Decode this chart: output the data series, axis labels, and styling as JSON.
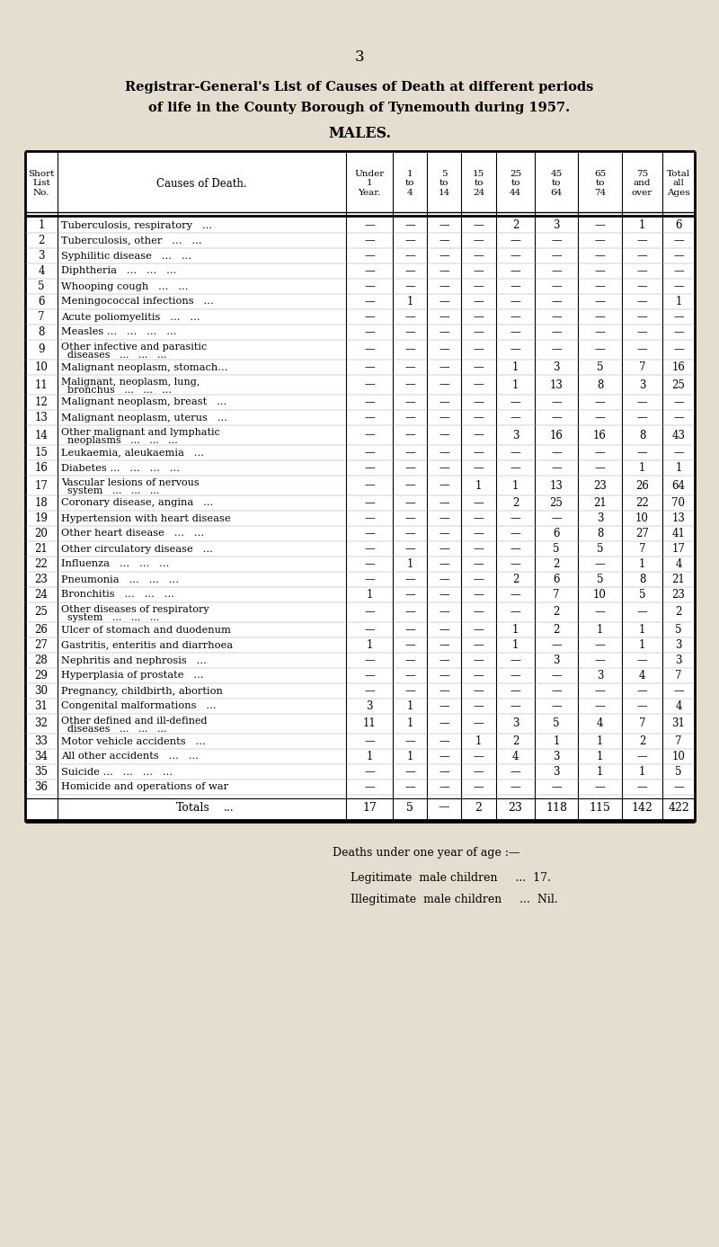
{
  "page_number": "3",
  "title_line1": "Registrar-General's List of Causes of Death at different periods",
  "title_line2": "of life in the County Borough of Tynemouth during 1957.",
  "subtitle": "MALES.",
  "bg_color": "#e5ddd0",
  "rows": [
    {
      "no": "1",
      "cause": "Tuberculosis, respiratory   ...",
      "wrap": false,
      "u1": "—",
      "1to4": "—",
      "5to14": "—",
      "15to24": "—",
      "25to44": "2",
      "45to64": "3",
      "65to74": "—",
      "75over": "1",
      "total": "6"
    },
    {
      "no": "2",
      "cause": "Tuberculosis, other   ...   ...",
      "wrap": false,
      "u1": "—",
      "1to4": "—",
      "5to14": "—",
      "15to24": "—",
      "25to44": "—",
      "45to64": "—",
      "65to74": "—",
      "75over": "—",
      "total": "—"
    },
    {
      "no": "3",
      "cause": "Syphilitic disease   ...   ...",
      "wrap": false,
      "u1": "—",
      "1to4": "—",
      "5to14": "—",
      "15to24": "—",
      "25to44": "—",
      "45to64": "—",
      "65to74": "—",
      "75over": "—",
      "total": "—"
    },
    {
      "no": "4",
      "cause": "Diphtheria   ...   ...   ...",
      "wrap": false,
      "u1": "—",
      "1to4": "—",
      "5to14": "—",
      "15to24": "—",
      "25to44": "—",
      "45to64": "—",
      "65to74": "—",
      "75over": "—",
      "total": "—"
    },
    {
      "no": "5",
      "cause": "Whooping cough   ...   ...",
      "wrap": false,
      "u1": "—",
      "1to4": "—",
      "5to14": "—",
      "15to24": "—",
      "25to44": "—",
      "45to64": "—",
      "65to74": "—",
      "75over": "—",
      "total": "—"
    },
    {
      "no": "6",
      "cause": "Meningococcal infections   ...",
      "wrap": false,
      "u1": "—",
      "1to4": "1",
      "5to14": "—",
      "15to24": "—",
      "25to44": "—",
      "45to64": "—",
      "65to74": "—",
      "75over": "—",
      "total": "1"
    },
    {
      "no": "7",
      "cause": "Acute poliomyelitis   ...   ...",
      "wrap": false,
      "u1": "—",
      "1to4": "—",
      "5to14": "—",
      "15to24": "—",
      "25to44": "—",
      "45to64": "—",
      "65to74": "—",
      "75over": "—",
      "total": "—"
    },
    {
      "no": "8",
      "cause": "Measles ...   ...   ...   ...",
      "wrap": false,
      "u1": "—",
      "1to4": "—",
      "5to14": "—",
      "15to24": "—",
      "25to44": "—",
      "45to64": "—",
      "65to74": "—",
      "75over": "—",
      "total": "—"
    },
    {
      "no": "9",
      "cause": "Other infective and parasitic",
      "wrap": true,
      "cause2": "  diseases   ...   ...   ...",
      "u1": "—",
      "1to4": "—",
      "5to14": "—",
      "15to24": "—",
      "25to44": "—",
      "45to64": "—",
      "65to74": "—",
      "75over": "—",
      "total": "—"
    },
    {
      "no": "10",
      "cause": "Malignant neoplasm, stomach...",
      "wrap": false,
      "u1": "—",
      "1to4": "—",
      "5to14": "—",
      "15to24": "—",
      "25to44": "1",
      "45to64": "3",
      "65to74": "5",
      "75over": "7",
      "total": "16"
    },
    {
      "no": "11",
      "cause": "Malignant, neoplasm, lung,",
      "wrap": true,
      "cause2": "  bronchus   ...   ...   ...",
      "u1": "—",
      "1to4": "—",
      "5to14": "—",
      "15to24": "—",
      "25to44": "1",
      "45to64": "13",
      "65to74": "8",
      "75over": "3",
      "total": "25"
    },
    {
      "no": "12",
      "cause": "Malignant neoplasm, breast   ...",
      "wrap": false,
      "u1": "—",
      "1to4": "—",
      "5to14": "—",
      "15to24": "—",
      "25to44": "—",
      "45to64": "—",
      "65to74": "—",
      "75over": "—",
      "total": "—"
    },
    {
      "no": "13",
      "cause": "Malignant neoplasm, uterus   ...",
      "wrap": false,
      "u1": "—",
      "1to4": "—",
      "5to14": "—",
      "15to24": "—",
      "25to44": "—",
      "45to64": "—",
      "65to74": "—",
      "75over": "—",
      "total": "—"
    },
    {
      "no": "14",
      "cause": "Other malignant and lymphatic",
      "wrap": true,
      "cause2": "  neoplasms   ...   ...   ...",
      "u1": "—",
      "1to4": "—",
      "5to14": "—",
      "15to24": "—",
      "25to44": "3",
      "45to64": "16",
      "65to74": "16",
      "75over": "8",
      "total": "43"
    },
    {
      "no": "15",
      "cause": "Leukaemia, aleukaemia   ...",
      "wrap": false,
      "u1": "—",
      "1to4": "—",
      "5to14": "—",
      "15to24": "—",
      "25to44": "—",
      "45to64": "—",
      "65to74": "—",
      "75over": "—",
      "total": "—"
    },
    {
      "no": "16",
      "cause": "Diabetes ...   ...   ...   ...",
      "wrap": false,
      "u1": "—",
      "1to4": "—",
      "5to14": "—",
      "15to24": "—",
      "25to44": "—",
      "45to64": "—",
      "65to74": "—",
      "75over": "1",
      "total": "1"
    },
    {
      "no": "17",
      "cause": "Vascular lesions of nervous",
      "wrap": true,
      "cause2": "  system   ...   ...   ...",
      "u1": "—",
      "1to4": "—",
      "5to14": "—",
      "15to24": "1",
      "25to44": "1",
      "45to64": "13",
      "65to74": "23",
      "75over": "26",
      "total": "64"
    },
    {
      "no": "18",
      "cause": "Coronary disease, angina   ...",
      "wrap": false,
      "u1": "—",
      "1to4": "—",
      "5to14": "—",
      "15to24": "—",
      "25to44": "2",
      "45to64": "25",
      "65to74": "21",
      "75over": "22",
      "total": "70"
    },
    {
      "no": "19",
      "cause": "Hypertension with heart disease",
      "wrap": false,
      "u1": "—",
      "1to4": "—",
      "5to14": "—",
      "15to24": "—",
      "25to44": "—",
      "45to64": "—",
      "65to74": "3",
      "75over": "10",
      "total": "13"
    },
    {
      "no": "20",
      "cause": "Other heart disease   ...   ...",
      "wrap": false,
      "u1": "—",
      "1to4": "—",
      "5to14": "—",
      "15to24": "—",
      "25to44": "—",
      "45to64": "6",
      "65to74": "8",
      "75over": "27",
      "total": "41"
    },
    {
      "no": "21",
      "cause": "Other circulatory disease   ...",
      "wrap": false,
      "u1": "—",
      "1to4": "—",
      "5to14": "—",
      "15to24": "—",
      "25to44": "—",
      "45to64": "5",
      "65to74": "5",
      "75over": "7",
      "total": "17"
    },
    {
      "no": "22",
      "cause": "Influenza   ...   ...   ...",
      "wrap": false,
      "u1": "—",
      "1to4": "1",
      "5to14": "—",
      "15to24": "—",
      "25to44": "—",
      "45to64": "2",
      "65to74": "—",
      "75over": "1",
      "total": "4"
    },
    {
      "no": "23",
      "cause": "Pneumonia   ...   ...   ...",
      "wrap": false,
      "u1": "—",
      "1to4": "—",
      "5to14": "—",
      "15to24": "—",
      "25to44": "2",
      "45to64": "6",
      "65to74": "5",
      "75over": "8",
      "total": "21"
    },
    {
      "no": "24",
      "cause": "Bronchitis   ...   ...   ...",
      "wrap": false,
      "u1": "1",
      "1to4": "—",
      "5to14": "—",
      "15to24": "—",
      "25to44": "—",
      "45to64": "7",
      "65to74": "10",
      "75over": "5",
      "total": "23"
    },
    {
      "no": "25",
      "cause": "Other diseases of respiratory",
      "wrap": true,
      "cause2": "  system   ...   ...   ...",
      "u1": "—",
      "1to4": "—",
      "5to14": "—",
      "15to24": "—",
      "25to44": "—",
      "45to64": "2",
      "65to74": "—",
      "75over": "—",
      "total": "2"
    },
    {
      "no": "26",
      "cause": "Ulcer of stomach and duodenum",
      "wrap": false,
      "u1": "—",
      "1to4": "—",
      "5to14": "—",
      "15to24": "—",
      "25to44": "1",
      "45to64": "2",
      "65to74": "1",
      "75over": "1",
      "total": "5"
    },
    {
      "no": "27",
      "cause": "Gastritis, enteritis and diarrhoea",
      "wrap": false,
      "u1": "1",
      "1to4": "—",
      "5to14": "—",
      "15to24": "—",
      "25to44": "1",
      "45to64": "—",
      "65to74": "—",
      "75over": "1",
      "total": "3"
    },
    {
      "no": "28",
      "cause": "Nephritis and nephrosis   ...",
      "wrap": false,
      "u1": "—",
      "1to4": "—",
      "5to14": "—",
      "15to24": "—",
      "25to44": "—",
      "45to64": "3",
      "65to74": "—",
      "75over": "—",
      "total": "3"
    },
    {
      "no": "29",
      "cause": "Hyperplasia of prostate   ...",
      "wrap": false,
      "u1": "—",
      "1to4": "—",
      "5to14": "—",
      "15to24": "—",
      "25to44": "—",
      "45to64": "—",
      "65to74": "3",
      "75over": "4",
      "total": "7"
    },
    {
      "no": "30",
      "cause": "Pregnancy, childbirth, abortion",
      "wrap": false,
      "u1": "—",
      "1to4": "—",
      "5to14": "—",
      "15to24": "—",
      "25to44": "—",
      "45to64": "—",
      "65to74": "—",
      "75over": "—",
      "total": "—"
    },
    {
      "no": "31",
      "cause": "Congenital malformations   ...",
      "wrap": false,
      "u1": "3",
      "1to4": "1",
      "5to14": "—",
      "15to24": "—",
      "25to44": "—",
      "45to64": "—",
      "65to74": "—",
      "75over": "—",
      "total": "4"
    },
    {
      "no": "32",
      "cause": "Other defined and ill-defined",
      "wrap": true,
      "cause2": "  diseases   ...   ...   ...",
      "u1": "11",
      "1to4": "1",
      "5to14": "—",
      "15to24": "—",
      "25to44": "3",
      "45to64": "5",
      "65to74": "4",
      "75over": "7",
      "total": "31"
    },
    {
      "no": "33",
      "cause": "Motor vehicle accidents   ...",
      "wrap": false,
      "u1": "—",
      "1to4": "—",
      "5to14": "—",
      "15to24": "1",
      "25to44": "2",
      "45to64": "1",
      "65to74": "1",
      "75over": "2",
      "total": "7"
    },
    {
      "no": "34",
      "cause": "All other accidents   ...   ...",
      "wrap": false,
      "u1": "1",
      "1to4": "1",
      "5to14": "—",
      "15to24": "—",
      "25to44": "4",
      "45to64": "3",
      "65to74": "1",
      "75over": "—",
      "total": "10"
    },
    {
      "no": "35",
      "cause": "Suicide ...   ...   ...   ...",
      "wrap": false,
      "u1": "—",
      "1to4": "—",
      "5to14": "—",
      "15to24": "—",
      "25to44": "—",
      "45to64": "3",
      "65to74": "1",
      "75over": "1",
      "total": "5"
    },
    {
      "no": "36",
      "cause": "Homicide and operations of war",
      "wrap": false,
      "u1": "—",
      "1to4": "—",
      "5to14": "—",
      "15to24": "—",
      "25to44": "—",
      "45to64": "—",
      "65to74": "—",
      "75over": "—",
      "total": "—"
    }
  ],
  "totals": {
    "u1": "17",
    "1to4": "5",
    "5to14": "—",
    "15to24": "2",
    "25to44": "23",
    "45to64": "118",
    "65to74": "115",
    "75over": "142",
    "total": "422"
  },
  "footer_line1": "Deaths under one year of age :—",
  "footer_line2": "Legitimate  male children     ...  17.",
  "footer_line3": "Illegitimate  male children     ...  Nil."
}
